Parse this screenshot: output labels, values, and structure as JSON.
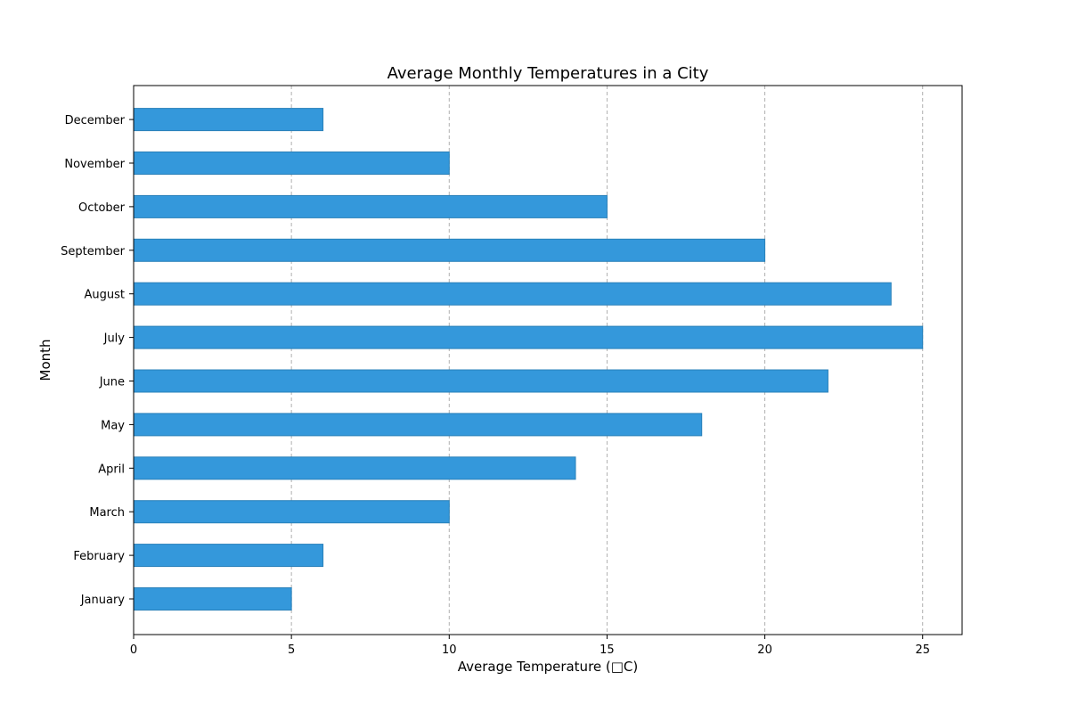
{
  "chart_data": {
    "type": "bar",
    "orientation": "horizontal",
    "title": "Average Monthly Temperatures in a City",
    "xlabel": "Average Temperature (□C)",
    "ylabel": "Month",
    "categories": [
      "January",
      "February",
      "March",
      "April",
      "May",
      "June",
      "July",
      "August",
      "September",
      "October",
      "November",
      "December"
    ],
    "values": [
      5,
      6,
      10,
      14,
      18,
      22,
      25,
      24,
      20,
      15,
      10,
      6
    ],
    "xlim": [
      0,
      26.25
    ],
    "xticks": [
      0,
      5,
      10,
      15,
      20,
      25
    ],
    "xtick_labels": [
      "0",
      "5",
      "10",
      "15",
      "20",
      "25"
    ],
    "grid": "x-axis dashed",
    "bar_color": "#3498db",
    "bar_edge_color": "#2980b9",
    "grid_color": "#b0b0b0"
  }
}
